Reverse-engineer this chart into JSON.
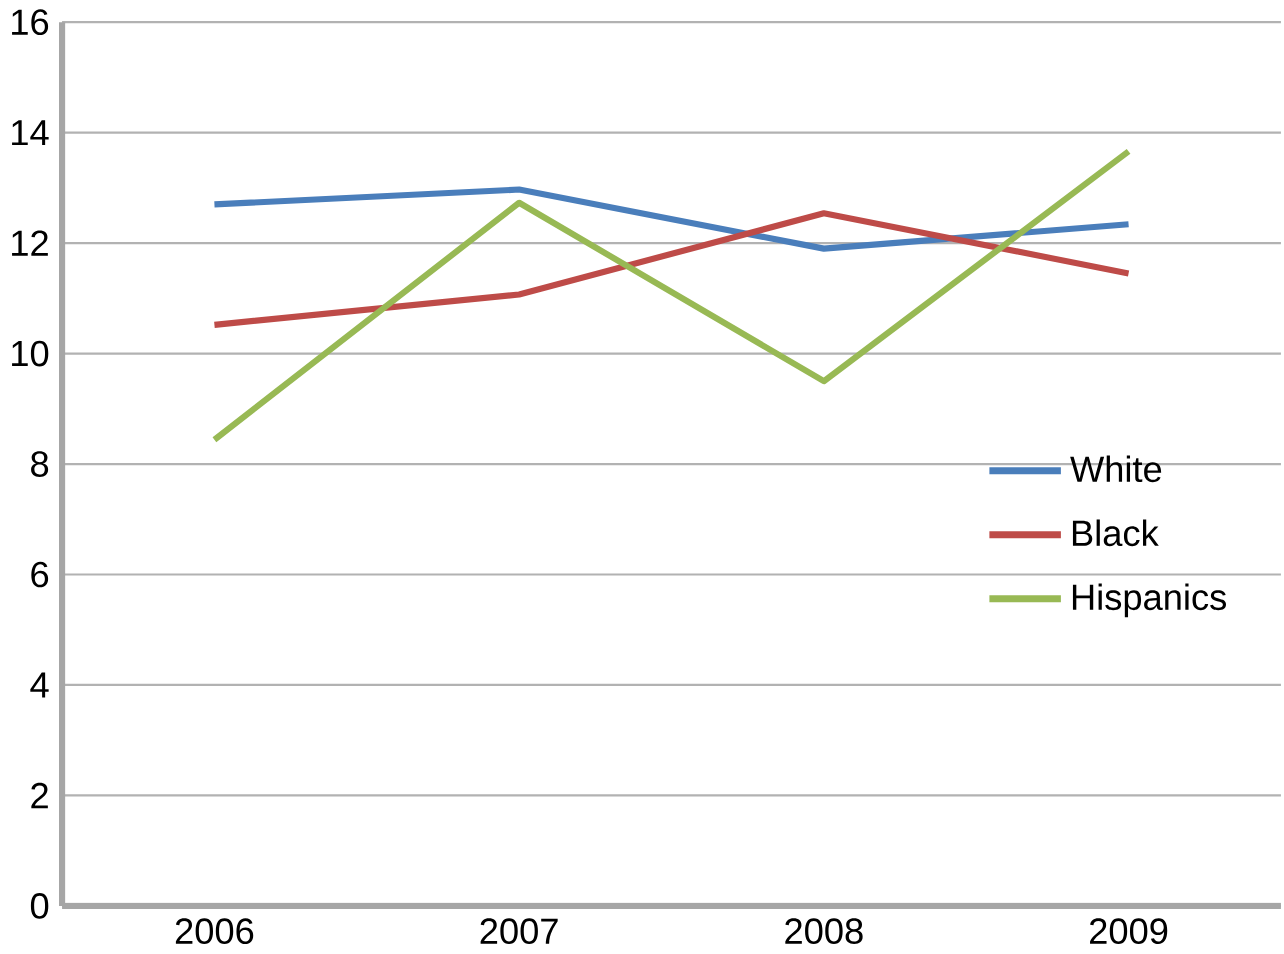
{
  "chart_data": {
    "type": "line",
    "categories": [
      "2006",
      "2007",
      "2008",
      "2009"
    ],
    "series": [
      {
        "name": "White",
        "color": "#4a7ebb",
        "values": [
          12.7,
          12.97,
          11.9,
          12.34
        ]
      },
      {
        "name": "Black",
        "color": "#be4b48",
        "values": [
          10.52,
          11.07,
          12.54,
          11.45
        ]
      },
      {
        "name": "Hispanics",
        "color": "#98b954",
        "values": [
          8.44,
          12.73,
          9.5,
          13.66
        ]
      }
    ],
    "ylim": [
      0,
      16
    ],
    "yticks": [
      0,
      2,
      4,
      6,
      8,
      10,
      12,
      14,
      16
    ],
    "grid": "y",
    "legend": "right",
    "marker": "none",
    "line_style": "solid"
  }
}
